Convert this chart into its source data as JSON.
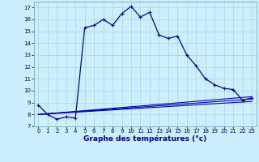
{
  "title": "Graphe des températures (°c)",
  "bg_color": "#cceeff",
  "grid_color": "#aadddd",
  "line_color": "#0000aa",
  "xlim": [
    -0.5,
    23.5
  ],
  "ylim": [
    7,
    17.5
  ],
  "xticks": [
    0,
    1,
    2,
    3,
    4,
    5,
    6,
    7,
    8,
    9,
    10,
    11,
    12,
    13,
    14,
    15,
    16,
    17,
    18,
    19,
    20,
    21,
    22,
    23
  ],
  "yticks": [
    7,
    8,
    9,
    10,
    11,
    12,
    13,
    14,
    15,
    16,
    17
  ],
  "main_line_x": [
    0,
    1,
    2,
    3,
    4,
    5,
    6,
    7,
    8,
    9,
    10,
    11,
    12,
    13,
    14,
    15,
    16,
    17,
    18,
    19,
    20,
    21,
    22,
    23
  ],
  "main_line_y": [
    8.8,
    8.0,
    7.6,
    7.8,
    7.7,
    15.3,
    15.5,
    16.0,
    15.5,
    16.5,
    17.1,
    16.2,
    16.6,
    14.7,
    14.4,
    14.6,
    13.0,
    12.1,
    11.0,
    10.5,
    10.2,
    10.1,
    9.2,
    9.4
  ],
  "line2_x": [
    0,
    23
  ],
  "line2_y": [
    8.0,
    9.5
  ],
  "line3_x": [
    0,
    23
  ],
  "line3_y": [
    8.0,
    9.3
  ],
  "line4_x": [
    0,
    23
  ],
  "line4_y": [
    8.0,
    9.1
  ]
}
